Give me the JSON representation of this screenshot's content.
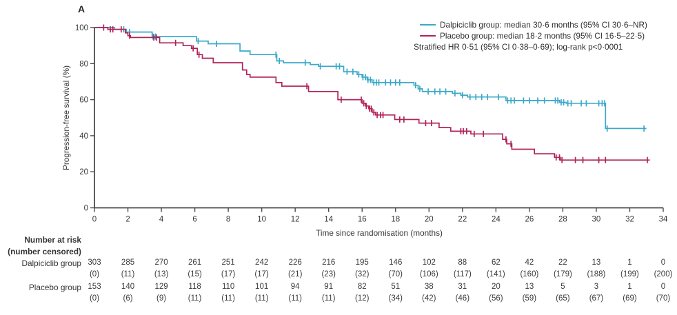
{
  "panel_label": "A",
  "colors": {
    "dalpiciclib": "#3aa9c9",
    "placebo": "#b02358",
    "axis": "#4a4a4b",
    "text": "#343434"
  },
  "legend": {
    "position": "top-right",
    "entries": [
      {
        "label": "Dalpiciclib group: median 30·6 months (95% CI 30·6–NR)",
        "color": "#3aa9c9"
      },
      {
        "label": "Placebo group: median 18·2 months (95% CI 16·5–22·5)",
        "color": "#b02358"
      }
    ],
    "note": "Stratified HR 0·51 (95% CI 0·38–0·69); log-rank p<0·0001"
  },
  "axes": {
    "x": {
      "label": "Time since randomisation (months)",
      "ticks": [
        0,
        2,
        4,
        6,
        8,
        10,
        12,
        14,
        16,
        18,
        20,
        22,
        24,
        26,
        28,
        30,
        32,
        34
      ],
      "range": [
        0,
        34
      ]
    },
    "y": {
      "label": "Progression-free survival (%)",
      "ticks": [
        0,
        20,
        40,
        60,
        80,
        100
      ],
      "range": [
        0,
        100
      ]
    }
  },
  "chart_data": {
    "type": "line",
    "subtype": "kaplan-meier-step",
    "title": "",
    "xlabel": "Time since randomisation (months)",
    "ylabel": "Progression-free survival (%)",
    "xlim": [
      0,
      34
    ],
    "ylim": [
      0,
      100
    ],
    "grid": false,
    "series": [
      {
        "name": "Dalpiciclib group",
        "color": "#3aa9c9",
        "steps": [
          [
            0,
            100
          ],
          [
            1.2,
            99
          ],
          [
            1.9,
            97.5
          ],
          [
            3.45,
            95
          ],
          [
            6.1,
            92.5
          ],
          [
            6.8,
            91
          ],
          [
            8.7,
            87
          ],
          [
            9.3,
            85
          ],
          [
            10.9,
            81.5
          ],
          [
            11.3,
            80.5
          ],
          [
            12.9,
            79.5
          ],
          [
            13.4,
            78.5
          ],
          [
            14.9,
            75.5
          ],
          [
            15.7,
            74
          ],
          [
            16.0,
            72.5
          ],
          [
            16.3,
            71
          ],
          [
            16.6,
            69.5
          ],
          [
            19.1,
            68
          ],
          [
            19.35,
            66
          ],
          [
            19.6,
            64.5
          ],
          [
            21.4,
            63.5
          ],
          [
            21.9,
            62.5
          ],
          [
            22.3,
            61.5
          ],
          [
            24.6,
            59.5
          ],
          [
            27.8,
            58.5
          ],
          [
            28.2,
            58
          ],
          [
            30.55,
            44
          ]
        ],
        "end_time": 33.0,
        "censor_times": [
          1.75,
          2.1,
          3.5,
          3.65,
          6.2,
          7.3,
          10.85,
          11.05,
          12.6,
          13.5,
          14.45,
          14.65,
          15.1,
          15.45,
          15.8,
          16.05,
          16.2,
          16.35,
          16.5,
          16.7,
          16.85,
          17.0,
          17.4,
          17.7,
          18.0,
          18.25,
          19.2,
          19.45,
          19.95,
          20.35,
          20.65,
          21.0,
          21.55,
          22.0,
          22.45,
          22.8,
          23.15,
          23.5,
          24.15,
          24.7,
          24.9,
          25.1,
          25.65,
          26.0,
          26.5,
          26.9,
          27.55,
          27.7,
          27.9,
          28.05,
          28.3,
          28.5,
          29.1,
          29.4,
          30.15,
          30.35,
          30.5,
          30.65,
          32.85
        ]
      },
      {
        "name": "Placebo group",
        "color": "#b02358",
        "steps": [
          [
            0,
            100
          ],
          [
            0.8,
            99
          ],
          [
            1.85,
            97
          ],
          [
            2.0,
            95.5
          ],
          [
            2.15,
            94.5
          ],
          [
            3.9,
            91.5
          ],
          [
            5.3,
            90
          ],
          [
            5.8,
            88.5
          ],
          [
            6.15,
            85
          ],
          [
            6.45,
            83
          ],
          [
            7.1,
            80.5
          ],
          [
            8.85,
            76.5
          ],
          [
            9.1,
            74
          ],
          [
            9.3,
            72.5
          ],
          [
            10.85,
            69.5
          ],
          [
            11.2,
            67.5
          ],
          [
            12.8,
            64.5
          ],
          [
            14.55,
            60
          ],
          [
            16.0,
            58
          ],
          [
            16.2,
            56.5
          ],
          [
            16.4,
            55
          ],
          [
            16.6,
            53
          ],
          [
            16.8,
            51.5
          ],
          [
            17.95,
            49
          ],
          [
            19.4,
            47
          ],
          [
            20.6,
            44.5
          ],
          [
            21.3,
            42.5
          ],
          [
            22.5,
            41
          ],
          [
            24.4,
            38
          ],
          [
            24.65,
            35.5
          ],
          [
            24.95,
            32.5
          ],
          [
            26.3,
            30
          ],
          [
            27.5,
            28
          ],
          [
            27.85,
            26.5
          ]
        ],
        "end_time": 33.2,
        "censor_times": [
          0.55,
          0.95,
          1.1,
          1.6,
          2.1,
          3.55,
          3.7,
          4.85,
          5.9,
          6.25,
          12.7,
          14.75,
          15.95,
          16.1,
          16.25,
          16.45,
          16.55,
          16.7,
          16.9,
          17.1,
          17.25,
          18.25,
          18.5,
          19.8,
          20.15,
          21.9,
          22.05,
          22.25,
          22.7,
          23.25,
          24.6,
          24.9,
          27.6,
          27.8,
          27.95,
          28.75,
          29.2,
          30.15,
          30.55,
          33.05
        ]
      }
    ]
  },
  "risk_table": {
    "title": "Number at risk",
    "subtitle": "(number censored)",
    "time_points": [
      0,
      2,
      4,
      6,
      8,
      10,
      12,
      14,
      16,
      18,
      20,
      22,
      24,
      26,
      28,
      30,
      32,
      34
    ],
    "rows": [
      {
        "label": "Dalpiciclib group",
        "at_risk": [
          "303",
          "285",
          "270",
          "261",
          "251",
          "242",
          "226",
          "216",
          "195",
          "146",
          "102",
          "88",
          "62",
          "42",
          "22",
          "13",
          "1",
          "0"
        ],
        "censored": [
          "(0)",
          "(11)",
          "(13)",
          "(15)",
          "(17)",
          "(17)",
          "(21)",
          "(23)",
          "(32)",
          "(70)",
          "(106)",
          "(117)",
          "(141)",
          "(160)",
          "(179)",
          "(188)",
          "(199)",
          "(200)"
        ]
      },
      {
        "label": "Placebo group",
        "at_risk": [
          "153",
          "140",
          "129",
          "118",
          "110",
          "101",
          "94",
          "91",
          "82",
          "51",
          "38",
          "31",
          "20",
          "13",
          "5",
          "3",
          "1",
          "0"
        ],
        "censored": [
          "(0)",
          "(6)",
          "(9)",
          "(11)",
          "(11)",
          "(11)",
          "(11)",
          "(11)",
          "(12)",
          "(34)",
          "(42)",
          "(46)",
          "(56)",
          "(59)",
          "(65)",
          "(67)",
          "(69)",
          "(70)"
        ]
      }
    ]
  }
}
